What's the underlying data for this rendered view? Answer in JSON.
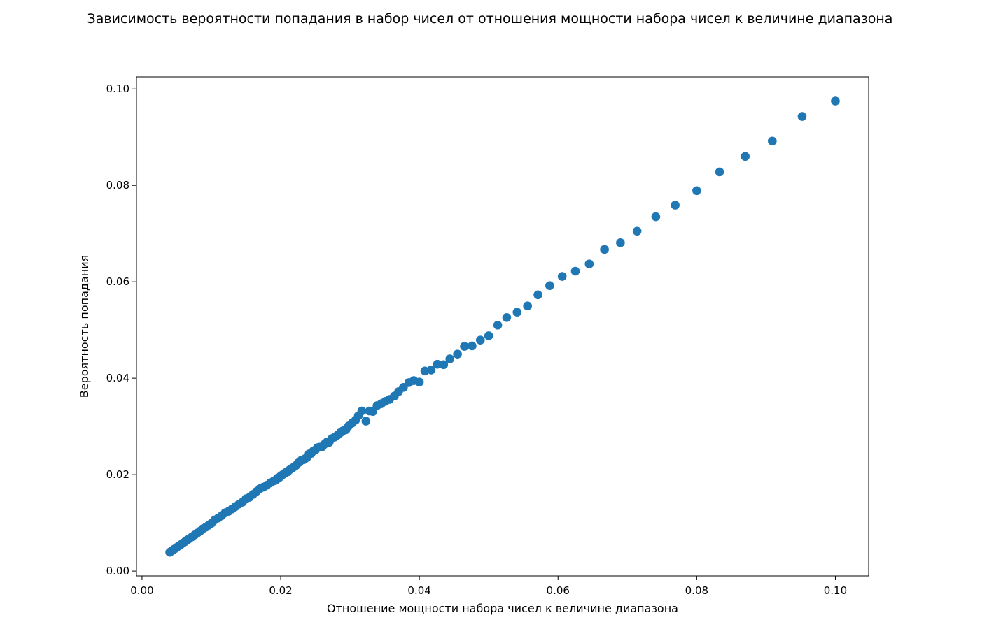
{
  "chart_data": {
    "type": "scatter",
    "title": "Зависимость вероятности попадания в набор чисел от отношения мощности набора чисел к величине диапазона",
    "xlabel": "Отношение мощности набора чисел к величине диапазона",
    "ylabel": "Вероятность попадания",
    "xlim": [
      -0.0008,
      0.1048
    ],
    "ylim": [
      -0.001,
      0.1025
    ],
    "x_ticks": [
      0.0,
      0.02,
      0.04,
      0.06,
      0.08,
      0.1
    ],
    "x_tick_labels": [
      "0.00",
      "0.02",
      "0.04",
      "0.06",
      "0.08",
      "0.10"
    ],
    "y_ticks": [
      0.0,
      0.02,
      0.04,
      0.06,
      0.08,
      0.1
    ],
    "y_tick_labels": [
      "0.00",
      "0.02",
      "0.04",
      "0.06",
      "0.08",
      "0.10"
    ],
    "grid": false,
    "legend": "none",
    "marker_color": "#1f77b4",
    "series": [
      {
        "x": [
          0.1,
          0.0952,
          0.0909,
          0.087,
          0.0833,
          0.08,
          0.0769,
          0.0741,
          0.0714,
          0.069,
          0.0667,
          0.0645,
          0.0625,
          0.0606,
          0.0588,
          0.0571,
          0.0556,
          0.0541,
          0.0526,
          0.0513,
          0.05,
          0.0488,
          0.0476,
          0.0465,
          0.0455,
          0.0444,
          0.0435,
          0.0426,
          0.0417,
          0.0408,
          0.04,
          0.0392,
          0.0385,
          0.0377,
          0.037,
          0.0364,
          0.0357,
          0.0351,
          0.0345,
          0.0339,
          0.0333,
          0.0328,
          0.0323,
          0.0317,
          0.0312,
          0.0308,
          0.0303,
          0.0298,
          0.0294,
          0.029,
          0.0286,
          0.0282,
          0.0278,
          0.0274,
          0.027,
          0.0267,
          0.0263,
          0.026,
          0.0256,
          0.0253,
          0.025,
          0.0247,
          0.0244,
          0.0241,
          0.0238,
          0.0235,
          0.0233,
          0.023,
          0.0227,
          0.0225,
          0.0222,
          0.022,
          0.0217,
          0.0215,
          0.0213,
          0.021,
          0.0208,
          0.0206,
          0.0204,
          0.0202,
          0.02,
          0.0198,
          0.0196,
          0.0194,
          0.0192,
          0.019,
          0.0185,
          0.018,
          0.0175,
          0.017,
          0.0165,
          0.016,
          0.0155,
          0.015,
          0.0145,
          0.014,
          0.0135,
          0.013,
          0.0125,
          0.012,
          0.0115,
          0.011,
          0.0105,
          0.01,
          0.0096,
          0.0092,
          0.0088,
          0.0084,
          0.008,
          0.0076,
          0.0072,
          0.0068,
          0.0065,
          0.0062,
          0.0059,
          0.0056,
          0.0053,
          0.005,
          0.0047,
          0.0044,
          0.0042,
          0.004
        ],
        "y": [
          0.0975,
          0.0943,
          0.0892,
          0.086,
          0.0828,
          0.0789,
          0.0759,
          0.0735,
          0.0705,
          0.0681,
          0.0667,
          0.0637,
          0.0622,
          0.0611,
          0.0592,
          0.0573,
          0.055,
          0.0537,
          0.0526,
          0.051,
          0.0488,
          0.0479,
          0.0467,
          0.0466,
          0.045,
          0.044,
          0.0428,
          0.0429,
          0.0417,
          0.0415,
          0.0392,
          0.0395,
          0.0391,
          0.0381,
          0.0372,
          0.0363,
          0.0356,
          0.0352,
          0.0347,
          0.0343,
          0.0331,
          0.0332,
          0.0311,
          0.0332,
          0.0322,
          0.0313,
          0.0307,
          0.0301,
          0.0293,
          0.0291,
          0.0287,
          0.0282,
          0.0278,
          0.0275,
          0.0267,
          0.0268,
          0.0263,
          0.0258,
          0.0257,
          0.0256,
          0.0251,
          0.0249,
          0.0244,
          0.0243,
          0.0236,
          0.0233,
          0.0231,
          0.023,
          0.0226,
          0.0224,
          0.0219,
          0.0217,
          0.0214,
          0.0212,
          0.021,
          0.0206,
          0.0205,
          0.0203,
          0.0201,
          0.0199,
          0.0197,
          0.0194,
          0.0193,
          0.019,
          0.0188,
          0.0187,
          0.0183,
          0.0178,
          0.0174,
          0.0171,
          0.0165,
          0.0159,
          0.0153,
          0.015,
          0.0143,
          0.0139,
          0.0134,
          0.0129,
          0.0124,
          0.0121,
          0.0115,
          0.011,
          0.0106,
          0.0099,
          0.0095,
          0.0091,
          0.0088,
          0.0083,
          0.0079,
          0.0075,
          0.0071,
          0.0067,
          0.0064,
          0.0061,
          0.0058,
          0.0055,
          0.0052,
          0.0049,
          0.0046,
          0.0043,
          0.0041,
          0.0039
        ]
      }
    ]
  }
}
